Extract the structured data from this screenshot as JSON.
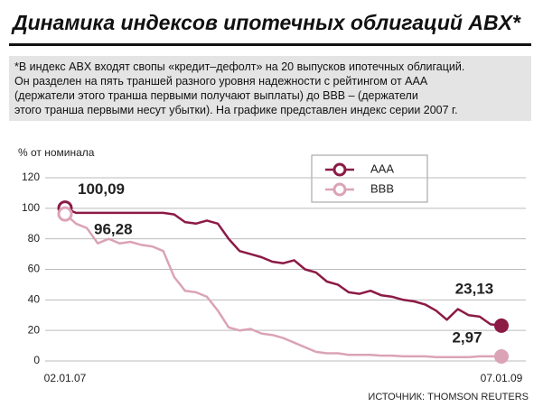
{
  "chart_data": {
    "type": "line",
    "title": "Динамика индексов ипотечных облигаций ABX*",
    "note": [
      "*В индекс ABX входят свопы «кредит–дефолт» на 20 выпусков ипотечных облигаций.",
      "Он разделен на пять траншей разного уровня надежности с рейтингом от AAA",
      "(держатели этого транша первыми получают выплаты) до BBB – (держатели",
      "этого транша первыми несут убытки). На графике представлен индекс серии 2007 г."
    ],
    "y_label": "% от номинала",
    "source": "ИСТОЧНИК: THOMSON REUTERS",
    "categories": [
      "02.01.07",
      null,
      null,
      null,
      null,
      null,
      null,
      null,
      null,
      null,
      null,
      null,
      null,
      null,
      null,
      null,
      null,
      null,
      null,
      null,
      null,
      null,
      null,
      null,
      null,
      null,
      null,
      null,
      null,
      null,
      null,
      null,
      null,
      null,
      null,
      null,
      null,
      null,
      null,
      null,
      "07.01.09"
    ],
    "series": [
      {
        "name": "AAA",
        "color": "#8b1a45",
        "values": [
          100.09,
          97,
          97,
          97,
          97,
          97,
          97,
          97,
          97,
          97,
          96,
          91,
          90,
          92,
          90,
          80,
          72,
          70,
          68,
          65,
          64,
          66,
          60,
          58,
          52,
          50,
          45,
          44,
          46,
          43,
          42,
          40,
          39,
          37,
          33,
          27,
          34,
          30,
          29,
          24,
          23.13
        ],
        "value_labels": [
          "100,09",
          null,
          null,
          null,
          null,
          null,
          null,
          null,
          null,
          null,
          null,
          null,
          null,
          null,
          null,
          null,
          null,
          null,
          null,
          null,
          null,
          null,
          null,
          null,
          null,
          null,
          null,
          null,
          null,
          null,
          null,
          null,
          null,
          null,
          null,
          null,
          null,
          null,
          null,
          null,
          "23,13"
        ]
      },
      {
        "name": "BBB",
        "color": "#dba3b6",
        "values": [
          96.28,
          90,
          87,
          77,
          80,
          77,
          78,
          76,
          75,
          72,
          55,
          46,
          45,
          42,
          33,
          22,
          20,
          21,
          18,
          17,
          15,
          12,
          9,
          6,
          5,
          5,
          4,
          4,
          4,
          3.5,
          3.5,
          3,
          3,
          3,
          2.5,
          2.5,
          2.5,
          2.5,
          3,
          3,
          2.97
        ],
        "value_labels": [
          "96,28",
          null,
          null,
          null,
          null,
          null,
          null,
          null,
          null,
          null,
          null,
          null,
          null,
          null,
          null,
          null,
          null,
          null,
          null,
          null,
          null,
          null,
          null,
          null,
          null,
          null,
          null,
          null,
          null,
          null,
          null,
          null,
          null,
          null,
          null,
          null,
          null,
          null,
          null,
          null,
          "2,97"
        ]
      }
    ],
    "ylim": [
      0,
      120
    ],
    "yticks": [
      0,
      20,
      40,
      60,
      80,
      100,
      120
    ],
    "grid": true
  }
}
